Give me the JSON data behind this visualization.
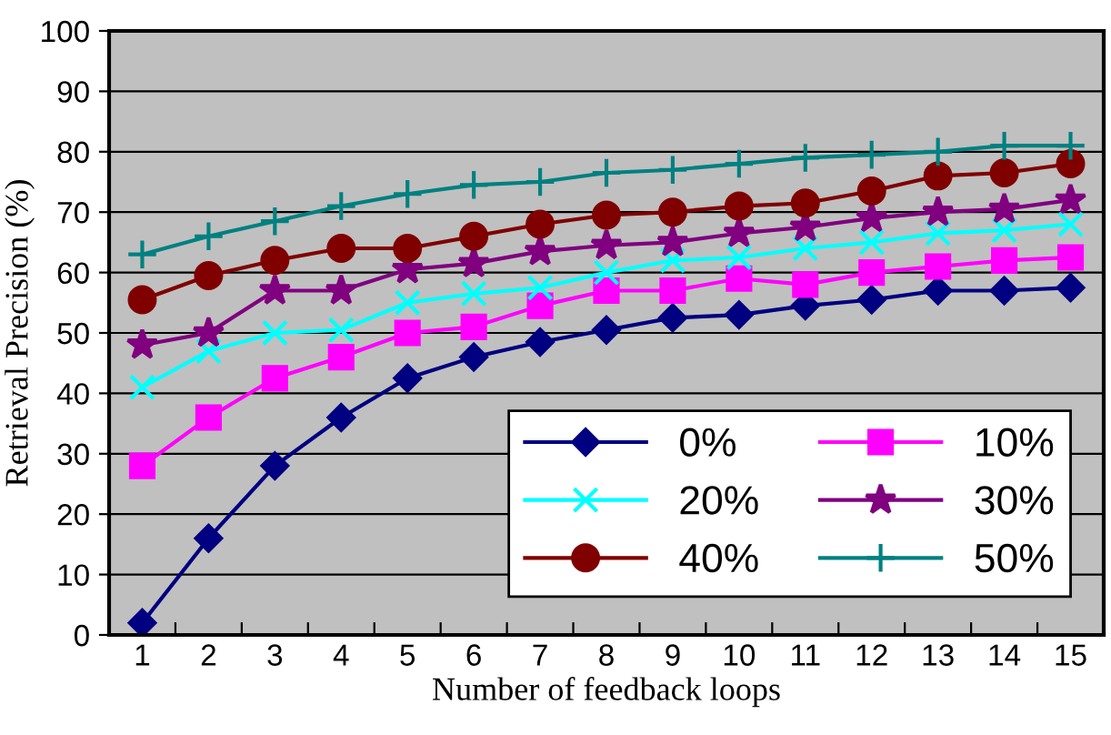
{
  "chart_data": {
    "type": "line",
    "xlabel": "Number of feedback loops",
    "ylabel": "Retrieval Precision (%)",
    "categories": [
      "1",
      "2",
      "3",
      "4",
      "5",
      "6",
      "7",
      "8",
      "9",
      "10",
      "11",
      "12",
      "13",
      "14",
      "15"
    ],
    "series": [
      {
        "name": "0%",
        "color": "#000080",
        "marker": "diamond",
        "values": [
          2,
          16,
          28,
          36,
          42.5,
          46,
          48.5,
          50.5,
          52.5,
          53,
          54.5,
          55.5,
          57,
          57,
          57.5
        ]
      },
      {
        "name": "10%",
        "color": "#ff00ff",
        "marker": "square",
        "values": [
          28,
          36,
          42.5,
          46,
          50,
          51,
          54.5,
          57,
          57,
          59,
          58,
          60,
          61,
          62,
          62.5
        ]
      },
      {
        "name": "20%",
        "color": "#00ffff",
        "marker": "cross",
        "values": [
          41,
          47,
          50,
          50.5,
          55,
          56.5,
          57.5,
          60,
          62,
          62.5,
          64,
          65,
          66.5,
          67,
          68
        ]
      },
      {
        "name": "30%",
        "color": "#800080",
        "marker": "star",
        "values": [
          48,
          50,
          57,
          57,
          60.5,
          61.5,
          63.5,
          64.5,
          65,
          66.5,
          67.5,
          69,
          70,
          70.5,
          72
        ]
      },
      {
        "name": "40%",
        "color": "#800000",
        "marker": "circle",
        "values": [
          55.5,
          59.5,
          62,
          64,
          64,
          66,
          68,
          69.5,
          70,
          71,
          71.5,
          73.5,
          76,
          76.5,
          78
        ]
      },
      {
        "name": "50%",
        "color": "#008080",
        "marker": "plus",
        "values": [
          63,
          66,
          68.5,
          71,
          73,
          74.5,
          75,
          76.5,
          77,
          78,
          79,
          79.5,
          80,
          81,
          81
        ]
      }
    ],
    "ylim": [
      0,
      100
    ],
    "yticks": [
      0,
      10,
      20,
      30,
      40,
      50,
      60,
      70,
      80,
      90,
      100
    ],
    "grid": "y",
    "legend": "bottom right"
  }
}
